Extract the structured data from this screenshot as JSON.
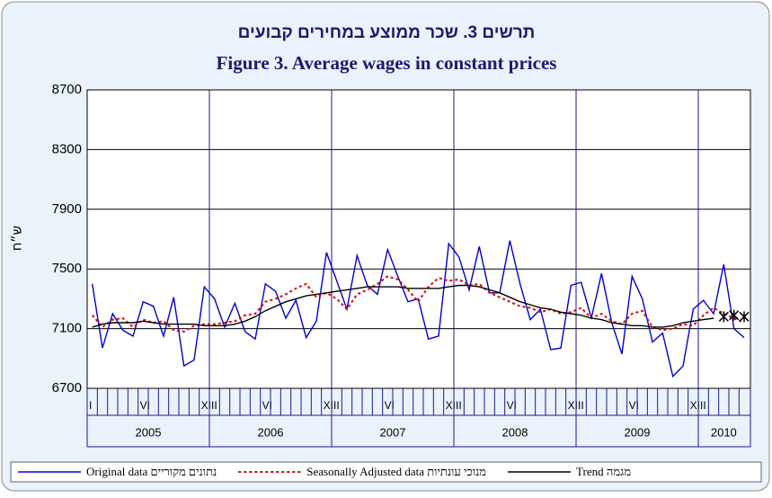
{
  "chart_data": {
    "type": "line",
    "title": "תרשים 3. שכר ממוצע במחירים קבועים",
    "subtitle": "Figure 3. Average wages in constant prices",
    "y_label": "ש״ח",
    "ylim": [
      6700,
      8700
    ],
    "yticks": [
      6700,
      7100,
      7500,
      7900,
      8300,
      8700
    ],
    "grid": true,
    "legend": "bottom",
    "years": [
      "2005",
      "2006",
      "2007",
      "2008",
      "2009",
      "2010"
    ],
    "categories": [
      "I",
      null,
      null,
      null,
      null,
      "VI",
      null,
      null,
      null,
      null,
      null,
      "XIII",
      null,
      null,
      null,
      null,
      null,
      "VI",
      null,
      null,
      null,
      null,
      null,
      "XIII",
      null,
      null,
      null,
      null,
      null,
      "VI",
      null,
      null,
      null,
      null,
      null,
      "XIII",
      null,
      null,
      null,
      null,
      null,
      "VI",
      null,
      null,
      null,
      null,
      null,
      "XIII",
      null,
      null,
      null,
      null,
      null,
      "VI",
      null,
      null,
      null,
      null,
      null,
      "XIII",
      null,
      null,
      null,
      null,
      null
    ],
    "series": [
      {
        "name": "Original data נתונים מקוריים",
        "color": "#0000cc",
        "dash": "none",
        "values": [
          7400,
          6970,
          7200,
          7090,
          7050,
          7280,
          7250,
          7050,
          7310,
          6850,
          6890,
          7380,
          7300,
          7110,
          7270,
          7080,
          7030,
          7400,
          7350,
          7170,
          7290,
          7040,
          7150,
          7610,
          7420,
          7230,
          7590,
          7390,
          7330,
          7630,
          7450,
          7280,
          7300,
          7030,
          7050,
          7670,
          7580,
          7360,
          7650,
          7340,
          7340,
          7690,
          7400,
          7160,
          7230,
          6960,
          6970,
          7390,
          7410,
          7170,
          7470,
          7140,
          6930,
          7450,
          7300,
          7010,
          7070,
          6780,
          6850,
          7230,
          7290,
          7200,
          7530,
          7100,
          7040
        ]
      },
      {
        "name": "Seasonally Adjusted data מנוכי עונתיות",
        "color": "#e00000",
        "dash": "3,3",
        "values": [
          7190,
          7110,
          7160,
          7170,
          7110,
          7160,
          7140,
          7150,
          7090,
          7080,
          7120,
          7130,
          7130,
          7140,
          7150,
          7190,
          7200,
          7280,
          7300,
          7330,
          7370,
          7400,
          7310,
          7340,
          7300,
          7230,
          7330,
          7360,
          7400,
          7450,
          7430,
          7360,
          7280,
          7380,
          7440,
          7420,
          7430,
          7390,
          7400,
          7340,
          7310,
          7280,
          7250,
          7240,
          7210,
          7230,
          7200,
          7210,
          7240,
          7170,
          7200,
          7150,
          7130,
          7200,
          7220,
          7110,
          7090,
          7100,
          7130,
          7120,
          7190,
          7240,
          7200,
          7170,
          7140
        ]
      },
      {
        "name": "Trend מגמה",
        "color": "#000000",
        "dash": "none",
        "values": [
          7110,
          7130,
          7140,
          7140,
          7140,
          7150,
          7140,
          7130,
          7130,
          7130,
          7130,
          7120,
          7120,
          7120,
          7130,
          7150,
          7180,
          7220,
          7250,
          7280,
          7300,
          7320,
          7330,
          7340,
          7350,
          7360,
          7370,
          7380,
          7380,
          7380,
          7380,
          7370,
          7370,
          7370,
          7370,
          7380,
          7390,
          7390,
          7380,
          7360,
          7340,
          7310,
          7280,
          7260,
          7240,
          7230,
          7210,
          7200,
          7190,
          7170,
          7160,
          7140,
          7130,
          7120,
          7120,
          7110,
          7110,
          7120,
          7140,
          7150,
          7160,
          7170,
          null,
          null,
          null
        ]
      },
      {
        "color": "#000000",
        "marker": "x",
        "values": [
          null,
          null,
          null,
          null,
          null,
          null,
          null,
          null,
          null,
          null,
          null,
          null,
          null,
          null,
          null,
          null,
          null,
          null,
          null,
          null,
          null,
          null,
          null,
          null,
          null,
          null,
          null,
          null,
          null,
          null,
          null,
          null,
          null,
          null,
          null,
          null,
          null,
          null,
          null,
          null,
          null,
          null,
          null,
          null,
          null,
          null,
          null,
          null,
          null,
          null,
          null,
          null,
          null,
          null,
          null,
          null,
          null,
          null,
          null,
          null,
          null,
          null,
          7180,
          7190,
          7180
        ]
      }
    ]
  }
}
